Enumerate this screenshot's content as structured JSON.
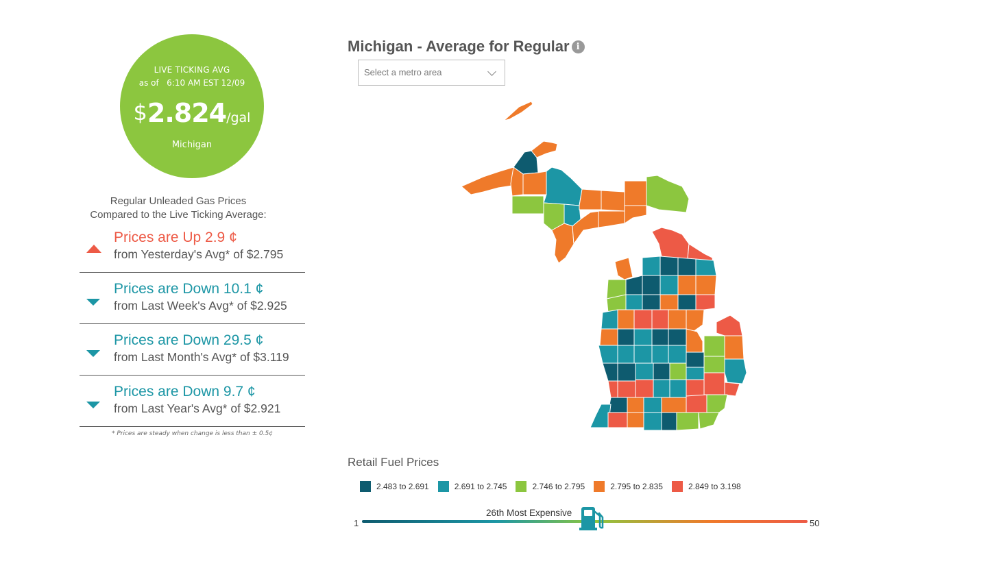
{
  "live_avg": {
    "label": "LIVE TICKING AVG",
    "as_of": "as of   6:10 AM EST 12/09",
    "currency": "$",
    "price": "2.824",
    "unit": "/gal",
    "state": "Michigan",
    "color": "#8cc63f"
  },
  "compare": {
    "title_line1": "Regular Unleaded Gas Prices",
    "title_line2": "Compared to the Live Ticking Average:",
    "rows": [
      {
        "direction": "up",
        "headline": "Prices are Up 2.9 ¢",
        "sub": "from Yesterday's Avg* of $2.795"
      },
      {
        "direction": "down",
        "headline": "Prices are Down 10.1 ¢",
        "sub": "from Last Week's Avg* of $2.925"
      },
      {
        "direction": "down",
        "headline": "Prices are Down 29.5 ¢",
        "sub": "from Last Month's Avg* of $3.119"
      },
      {
        "direction": "down",
        "headline": "Prices are Down 9.7 ¢",
        "sub": "from Last Year's Avg* of $2.921"
      }
    ],
    "footnote": "* Prices are steady when change is less than ± 0.5¢",
    "up_color": "#ed5a46",
    "down_color": "#1c96a5"
  },
  "map": {
    "title": "Michigan - Average for Regular",
    "info_icon": "info-icon",
    "metro_select": {
      "placeholder": "Select a metro area",
      "icon": "chevron-down-icon"
    }
  },
  "legend": {
    "title": "Retail Fuel Prices",
    "items": [
      {
        "label": "2.483 to 2.691",
        "color": "#0e5b6f"
      },
      {
        "label": "2.691 to 2.745",
        "color": "#1c96a5"
      },
      {
        "label": "2.746 to 2.795",
        "color": "#8cc63f"
      },
      {
        "label": "2.795 to 2.835",
        "color": "#ef7a2a"
      },
      {
        "label": "2.849 to 3.198",
        "color": "#ed5a46"
      }
    ]
  },
  "ranking": {
    "label": "26th Most Expensive",
    "min": "1",
    "max": "50",
    "rank": 26,
    "icon": "gas-pump-icon"
  }
}
